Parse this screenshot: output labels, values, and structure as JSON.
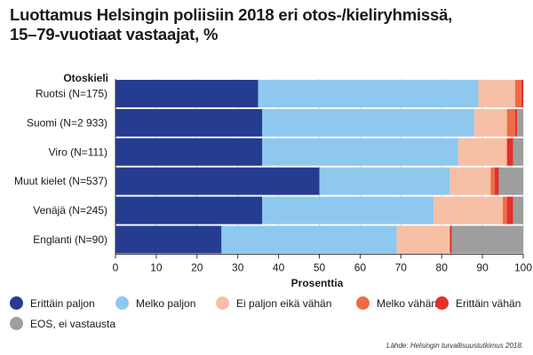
{
  "title_line1": "Luottamus Helsingin poliisiin 2018 eri otos-/kieliryhmissä,",
  "title_line2": "15–79-vuotiaat vastaajat, %",
  "source": "Lähde: Helsingin turvallisuustutkimus 2018.",
  "chart_data": {
    "type": "bar",
    "orientation": "horizontal",
    "stacked": true,
    "title": "Luottamus Helsingin poliisiin 2018 eri otos-/kieliryhmissä, 15–79-vuotiaat vastaajat, %",
    "category_axis_title": "Otoskieli",
    "xlabel": "Prosenttia",
    "xlim": [
      0,
      100
    ],
    "xticks": [
      0,
      10,
      20,
      30,
      40,
      50,
      60,
      70,
      80,
      90,
      100
    ],
    "grid": true,
    "legend_position": "bottom",
    "categories": [
      "Ruotsi (N=175)",
      "Suomi (N=2 933)",
      "Viro (N=111)",
      "Muut kielet (N=537)",
      "Venäjä (N=245)",
      "Englanti (N=90)"
    ],
    "series": [
      {
        "name": "Erittäin paljon",
        "color": "#253d91",
        "values": [
          35,
          36,
          36,
          50,
          36,
          26
        ]
      },
      {
        "name": "Melko paljon",
        "color": "#8ec8ef",
        "values": [
          54,
          52,
          48,
          32,
          42,
          43
        ]
      },
      {
        "name": "Ei paljon eikä vähän",
        "color": "#f6bfa6",
        "values": [
          9,
          8,
          12,
          10,
          17,
          13
        ]
      },
      {
        "name": "Melko vähän",
        "color": "#ee6c45",
        "values": [
          1.5,
          2,
          0,
          1,
          1,
          0
        ]
      },
      {
        "name": "Erittäin vähän",
        "color": "#e3302b",
        "values": [
          0.5,
          0.5,
          1.5,
          1,
          1.5,
          0.5
        ]
      },
      {
        "name": "EOS, ei vastausta",
        "color": "#9e9e9e",
        "values": [
          0,
          1.5,
          2.5,
          6,
          2.5,
          17.5
        ]
      }
    ]
  }
}
